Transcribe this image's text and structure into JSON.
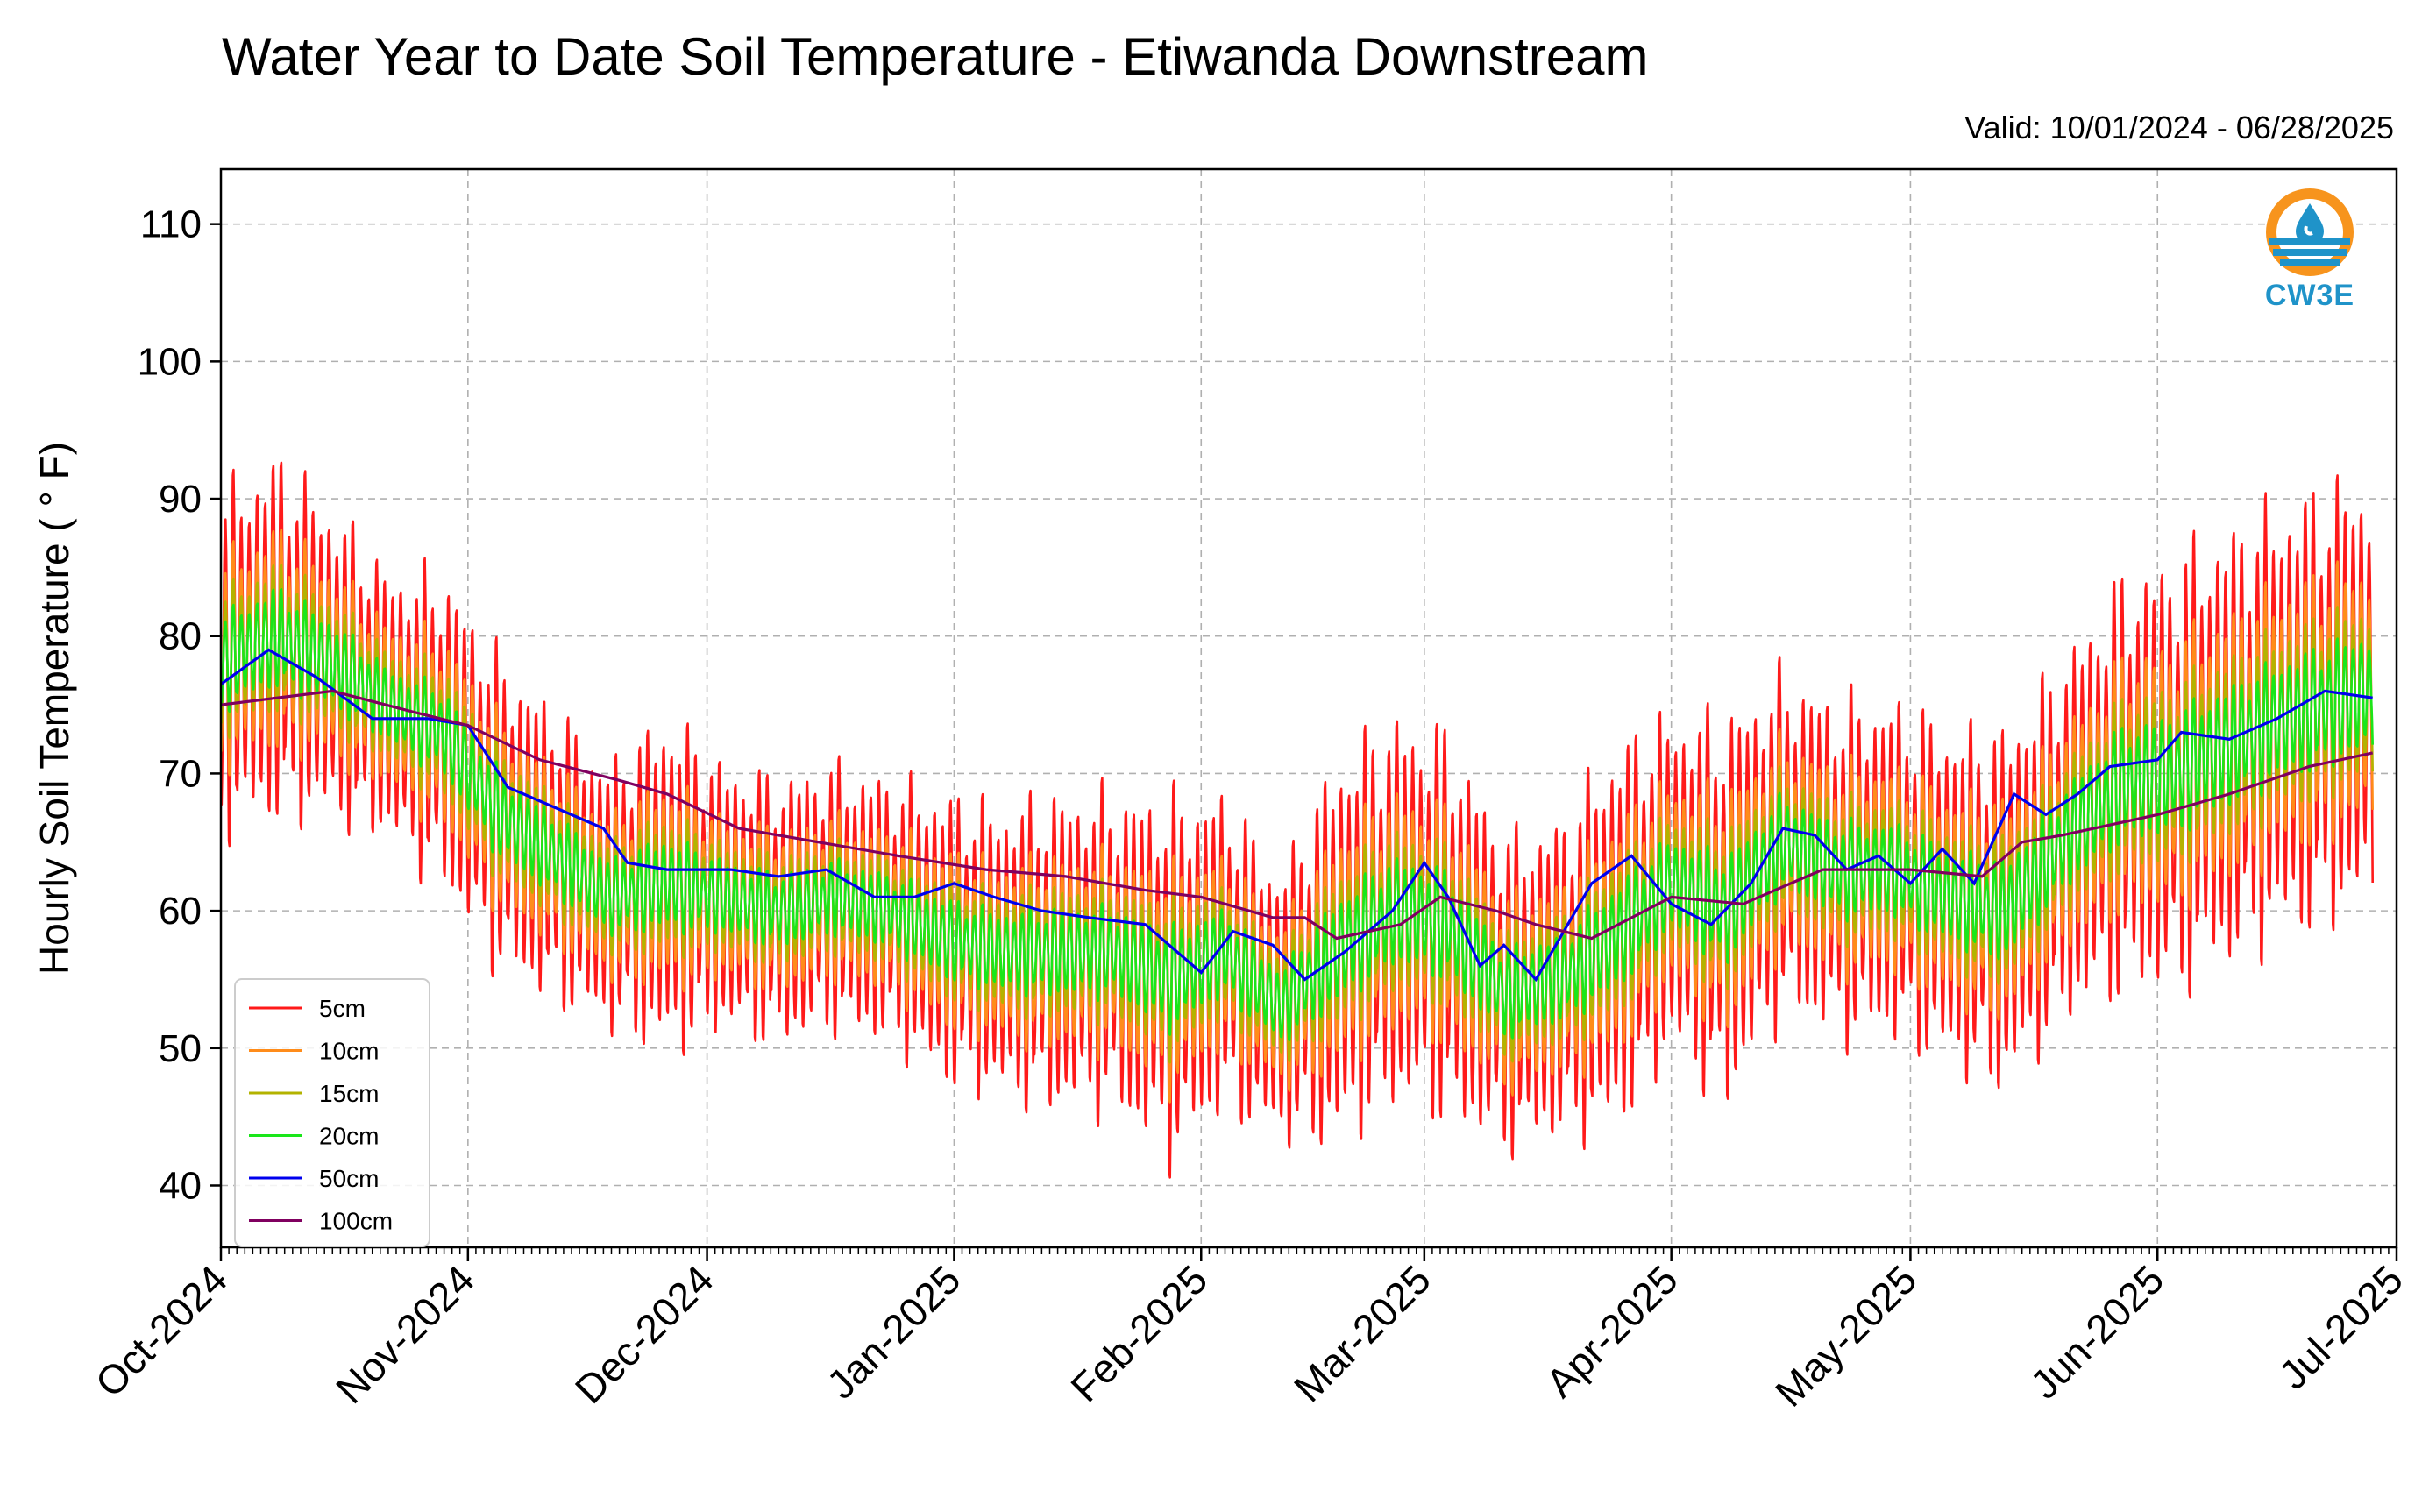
{
  "title": "Water Year to Date Soil Temperature - Etiwanda Downstream",
  "valid_range": "Valid: 10/01/2024 - 06/28/2025",
  "logo": {
    "text": "CW3E",
    "icon": "cw3e-logo-icon",
    "accent": "#f7941d",
    "brand": "#1f93c9"
  },
  "chart_data": {
    "type": "line",
    "title": "Water Year to Date Soil Temperature - Etiwanda Downstream",
    "ylabel": "Hourly Soil Temperature ( ° F)",
    "xlabel": "",
    "ylim": [
      35.5,
      114
    ],
    "xlim": [
      "2024-10-01",
      "2025-07-01"
    ],
    "yticks": [
      40,
      50,
      60,
      70,
      80,
      90,
      100,
      110
    ],
    "xticks": [
      "2024-10-01",
      "2024-11-01",
      "2024-12-01",
      "2025-01-01",
      "2025-02-01",
      "2025-03-01",
      "2025-04-01",
      "2025-05-01",
      "2025-06-01",
      "2025-07-01"
    ],
    "xtick_labels": [
      "Oct-2024",
      "Nov-2024",
      "Dec-2024",
      "Jan-2025",
      "Feb-2025",
      "Mar-2025",
      "Apr-2025",
      "May-2025",
      "Jun-2025",
      "Jul-2025"
    ],
    "grid": true,
    "legend_position": "lower-left",
    "daily_mean": {
      "dates": [
        "2024-10-01",
        "2024-10-08",
        "2024-10-15",
        "2024-10-22",
        "2024-10-29",
        "2024-11-05",
        "2024-11-12",
        "2024-11-19",
        "2024-11-26",
        "2024-12-03",
        "2024-12-10",
        "2024-12-17",
        "2024-12-24",
        "2024-12-31",
        "2025-01-07",
        "2025-01-14",
        "2025-01-21",
        "2025-01-28",
        "2025-02-04",
        "2025-02-11",
        "2025-02-18",
        "2025-02-25",
        "2025-03-04",
        "2025-03-11",
        "2025-03-18",
        "2025-03-25",
        "2025-04-01",
        "2025-04-08",
        "2025-04-15",
        "2025-04-22",
        "2025-04-29",
        "2025-05-06",
        "2025-05-13",
        "2025-05-20",
        "2025-05-27",
        "2025-06-03",
        "2025-06-10",
        "2025-06-17",
        "2025-06-28"
      ],
      "values": [
        78,
        80,
        78,
        75,
        73,
        67,
        64,
        61,
        62,
        61,
        60,
        61,
        60,
        58,
        57,
        57,
        57,
        55,
        57,
        53,
        57,
        60,
        59,
        54,
        55,
        58,
        62,
        60,
        65,
        63,
        63,
        61,
        60,
        65,
        69,
        70,
        72,
        74,
        76
      ]
    },
    "daily_range": {
      "dates": [
        "2024-10-01",
        "2024-10-08",
        "2024-10-15",
        "2024-10-22",
        "2024-10-29",
        "2024-11-05",
        "2024-11-12",
        "2024-11-19",
        "2024-11-26",
        "2024-12-03",
        "2024-12-10",
        "2024-12-17",
        "2024-12-24",
        "2024-12-31",
        "2025-01-07",
        "2025-01-14",
        "2025-01-21",
        "2025-01-28",
        "2025-02-04",
        "2025-02-11",
        "2025-02-18",
        "2025-02-25",
        "2025-03-04",
        "2025-03-11",
        "2025-03-18",
        "2025-03-25",
        "2025-04-01",
        "2025-04-08",
        "2025-04-15",
        "2025-04-22",
        "2025-04-29",
        "2025-05-06",
        "2025-05-13",
        "2025-05-20",
        "2025-05-27",
        "2025-06-03",
        "2025-06-10",
        "2025-06-17",
        "2025-06-28"
      ],
      "values": [
        28,
        30,
        26,
        22,
        26,
        26,
        24,
        22,
        28,
        22,
        22,
        22,
        22,
        24,
        24,
        26,
        26,
        30,
        26,
        22,
        32,
        32,
        32,
        26,
        26,
        32,
        28,
        32,
        28,
        28,
        28,
        28,
        30,
        30,
        34,
        36,
        36,
        36,
        36
      ]
    },
    "series": [
      {
        "name": "5cm",
        "color": "#ff1a1a",
        "amplitude": 1.0
      },
      {
        "name": "10cm",
        "color": "#ff8c1a",
        "amplitude": 0.62
      },
      {
        "name": "15cm",
        "color": "#b3b300",
        "amplitude": 0.42
      },
      {
        "name": "20cm",
        "color": "#1ae61a",
        "amplitude": 0.28
      },
      {
        "name": "50cm",
        "color": "#0000ee",
        "x": [
          "2024-10-01",
          "2024-10-07",
          "2024-10-13",
          "2024-10-20",
          "2024-10-27",
          "2024-11-01",
          "2024-11-06",
          "2024-11-12",
          "2024-11-18",
          "2024-11-21",
          "2024-11-26",
          "2024-12-04",
          "2024-12-10",
          "2024-12-16",
          "2024-12-22",
          "2024-12-27",
          "2025-01-01",
          "2025-01-06",
          "2025-01-12",
          "2025-01-18",
          "2025-01-25",
          "2025-02-01",
          "2025-02-05",
          "2025-02-10",
          "2025-02-14",
          "2025-02-19",
          "2025-02-25",
          "2025-03-01",
          "2025-03-04",
          "2025-03-08",
          "2025-03-11",
          "2025-03-15",
          "2025-03-18",
          "2025-03-22",
          "2025-03-27",
          "2025-04-01",
          "2025-04-06",
          "2025-04-11",
          "2025-04-15",
          "2025-04-19",
          "2025-04-23",
          "2025-04-27",
          "2025-05-01",
          "2025-05-05",
          "2025-05-09",
          "2025-05-14",
          "2025-05-18",
          "2025-05-22",
          "2025-05-26",
          "2025-06-01",
          "2025-06-04",
          "2025-06-10",
          "2025-06-16",
          "2025-06-22",
          "2025-06-28"
        ],
        "values": [
          76.5,
          79,
          77,
          74,
          74,
          73.5,
          69,
          67.5,
          66,
          63.5,
          63,
          63,
          62.5,
          63,
          61,
          61,
          62,
          61,
          60,
          59.5,
          59,
          55.5,
          58.5,
          57.5,
          55,
          57,
          60,
          63.5,
          61,
          56,
          57.5,
          55,
          58,
          62,
          64,
          60.5,
          59,
          62,
          66,
          65.5,
          63,
          64,
          62,
          64.5,
          62,
          68.5,
          67,
          68.5,
          70.5,
          71,
          73,
          72.5,
          74,
          76,
          75.5
        ]
      },
      {
        "name": "100cm",
        "color": "#800060",
        "x": [
          "2024-10-01",
          "2024-10-15",
          "2024-10-25",
          "2024-11-01",
          "2024-11-10",
          "2024-11-20",
          "2024-11-26",
          "2024-12-05",
          "2024-12-15",
          "2024-12-25",
          "2025-01-05",
          "2025-01-15",
          "2025-01-25",
          "2025-02-01",
          "2025-02-10",
          "2025-02-14",
          "2025-02-18",
          "2025-02-26",
          "2025-03-03",
          "2025-03-10",
          "2025-03-15",
          "2025-03-22",
          "2025-04-01",
          "2025-04-10",
          "2025-04-20",
          "2025-05-01",
          "2025-05-10",
          "2025-05-15",
          "2025-05-20",
          "2025-06-01",
          "2025-06-10",
          "2025-06-20",
          "2025-06-28"
        ],
        "values": [
          75,
          76,
          74.5,
          73.5,
          71,
          69.5,
          68.5,
          66,
          65,
          64,
          63,
          62.5,
          61.5,
          61,
          59.5,
          59.5,
          58,
          59,
          61,
          60,
          59,
          58,
          61,
          60.5,
          63,
          63,
          62.5,
          65,
          65.5,
          67,
          68.5,
          70.5,
          71.5
        ]
      }
    ]
  }
}
